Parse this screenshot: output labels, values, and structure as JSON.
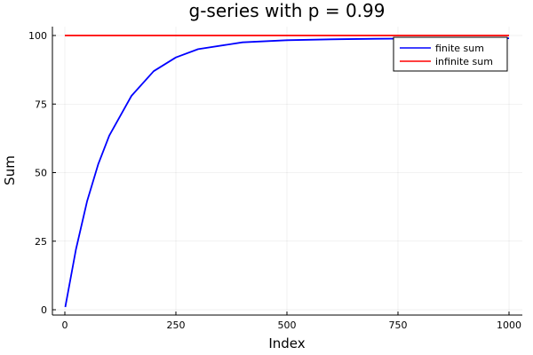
{
  "chart_data": {
    "type": "line",
    "title": "g-series with p = 0.99",
    "xlabel": "Index",
    "ylabel": "Sum",
    "xlim": [
      0,
      1000
    ],
    "ylim": [
      0,
      100
    ],
    "x_ticks": [
      0,
      250,
      500,
      750,
      1000
    ],
    "y_ticks": [
      0,
      25,
      50,
      75,
      100
    ],
    "x_tick_labels": [
      "0",
      "250",
      "500",
      "750",
      "1000"
    ],
    "y_tick_labels": [
      "0",
      "25",
      "50",
      "75",
      "100"
    ],
    "grid": true,
    "legend_position": "top-right",
    "series": [
      {
        "name": "finite sum",
        "color": "#0000ff",
        "x": [
          1,
          25,
          50,
          75,
          100,
          150,
          200,
          250,
          300,
          400,
          500,
          600,
          700,
          800,
          900,
          1000
        ],
        "y": [
          1,
          22,
          39.5,
          53,
          63.5,
          78,
          87,
          92,
          95,
          97.5,
          98.3,
          98.6,
          98.8,
          98.9,
          99,
          99
        ]
      },
      {
        "name": "infinite sum",
        "color": "#ff0000",
        "x": [
          0,
          1000
        ],
        "y": [
          100,
          100
        ]
      }
    ]
  }
}
